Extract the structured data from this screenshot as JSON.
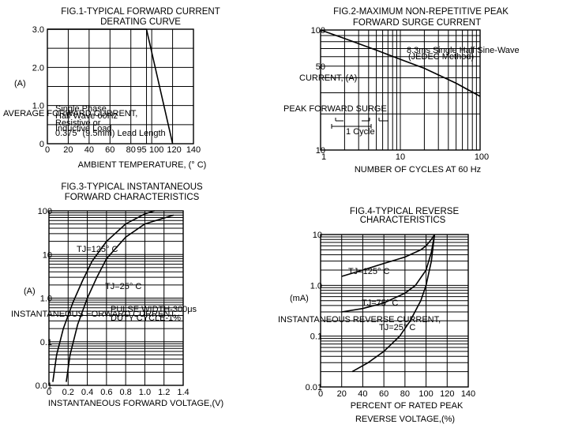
{
  "chart_data": [
    {
      "type": "line",
      "title": "FIG.1-TYPICAL FORWARD CURRENT DERATING CURVE",
      "title_lines": [
        "FIG.1-TYPICAL FORWARD CURRENT",
        "DERATING CURVE"
      ],
      "xlabel": "AMBIENT TEMPERATURE, (° C)",
      "ylabel": "AVERAGE FORWARD CURRENT,",
      "ylabel_unit": "(A)",
      "xlim": [
        0,
        140
      ],
      "ylim": [
        0,
        3.0
      ],
      "x_ticks": [
        "0",
        "20",
        "40",
        "60",
        "80",
        "95",
        "100",
        "120",
        "140"
      ],
      "y_ticks": [
        "0",
        "1.0",
        "2.0",
        "3.0"
      ],
      "annotations": [
        "Single Phase",
        "Half Wave 60Hz",
        "Resistive or",
        "Inductive Load",
        "0.375\" (9.5mm) Lead Length"
      ],
      "series": [
        {
          "x": [
            0,
            95,
            120
          ],
          "y": [
            3.0,
            3.0,
            0
          ]
        }
      ]
    },
    {
      "type": "line",
      "title": "FIG.2-MAXIMUM NON-REPETITIVE PEAK FORWARD SURGE CURRENT",
      "title_lines": [
        "FIG.2-MAXIMUM NON-REPETITIVE PEAK",
        "FORWARD SURGE CURRENT"
      ],
      "xlabel": "NUMBER OF CYCLES AT 60 Hz",
      "ylabel": "PEAK FORWARD SURGE",
      "ylabel_line2": "CURRENT, (A)",
      "xscale": "log",
      "yscale": "log",
      "xlim": [
        1,
        100
      ],
      "ylim": [
        10,
        100
      ],
      "x_ticks": [
        "1",
        "10",
        "100"
      ],
      "y_ticks": [
        "10",
        "50",
        "100"
      ],
      "annotations": [
        "8.3ms Single Half Sine-Wave",
        "(JEDEC Method)",
        "1 Cycle"
      ],
      "series": [
        {
          "x": [
            1,
            2,
            5,
            10,
            20,
            50,
            100
          ],
          "y": [
            100,
            85,
            68,
            57,
            48,
            36,
            28
          ]
        }
      ]
    },
    {
      "type": "line",
      "title": "FIG.3-TYPICAL INSTANTANEOUS FORWARD CHARACTERISTICS",
      "title_lines": [
        "FIG.3-TYPICAL INSTANTANEOUS",
        "FORWARD CHARACTERISTICS"
      ],
      "xlabel": "INSTANTANEOUS FORWARD VOLTAGE,(V)",
      "ylabel": "INSTANTANEOUS FORWARD CURRENT,",
      "ylabel_unit": "(A)",
      "yscale": "log",
      "xlim": [
        0,
        1.4
      ],
      "ylim": [
        0.01,
        100
      ],
      "x_ticks": [
        "0",
        "0.2",
        "0.4",
        "0.6",
        "0.8",
        "1.0",
        "1.2",
        "1.4"
      ],
      "y_ticks": [
        "0.01",
        "0.1",
        "1.0",
        "10",
        "100"
      ],
      "annotations": [
        "PULSE WIDTH-300μs",
        "DUTY CYCLE-1%"
      ],
      "series": [
        {
          "name": "TJ=125° C",
          "x": [
            0.04,
            0.08,
            0.15,
            0.25,
            0.35,
            0.45,
            0.6,
            0.8,
            1.0,
            1.1
          ],
          "y": [
            0.012,
            0.05,
            0.2,
            0.8,
            2.5,
            7,
            20,
            50,
            85,
            100
          ]
        },
        {
          "name": "TJ=25° C",
          "x": [
            0.18,
            0.22,
            0.3,
            0.4,
            0.5,
            0.6,
            0.8,
            1.0,
            1.3
          ],
          "y": [
            0.012,
            0.05,
            0.25,
            1.0,
            3,
            8,
            25,
            50,
            80
          ]
        }
      ]
    },
    {
      "type": "line",
      "title": "FIG.4-TYPICAL REVERSE CHARACTERISTICS",
      "title_lines": [
        "FIG.4-TYPICAL REVERSE",
        "CHARACTERISTICS"
      ],
      "xlabel": "PERCENT OF RATED PEAK",
      "xlabel_line2": "REVERSE VOLTAGE,(%)",
      "ylabel": "INSTANTANEOUS REVERSE CURRENT,",
      "ylabel_unit": "(mA)",
      "yscale": "log",
      "xlim": [
        0,
        140
      ],
      "ylim": [
        0.01,
        10
      ],
      "x_ticks": [
        "0",
        "20",
        "40",
        "60",
        "80",
        "100",
        "120",
        "140"
      ],
      "y_ticks": [
        "0.01",
        "0.1",
        "1.0",
        "10"
      ],
      "series": [
        {
          "name": "TJ=125° C",
          "x": [
            20,
            40,
            60,
            80,
            95,
            100,
            105,
            108
          ],
          "y": [
            1.5,
            2.0,
            2.7,
            3.6,
            5,
            6,
            8,
            10
          ]
        },
        {
          "name": "TJ=75° C",
          "x": [
            20,
            40,
            60,
            80,
            90,
            100,
            105,
            108
          ],
          "y": [
            0.3,
            0.35,
            0.45,
            0.7,
            1.0,
            2.0,
            4.5,
            10
          ]
        },
        {
          "name": "TJ=25° C",
          "x": [
            30,
            45,
            60,
            75,
            85,
            95,
            100,
            105,
            108
          ],
          "y": [
            0.02,
            0.03,
            0.05,
            0.1,
            0.2,
            0.5,
            1.0,
            3.0,
            10
          ]
        }
      ]
    }
  ]
}
